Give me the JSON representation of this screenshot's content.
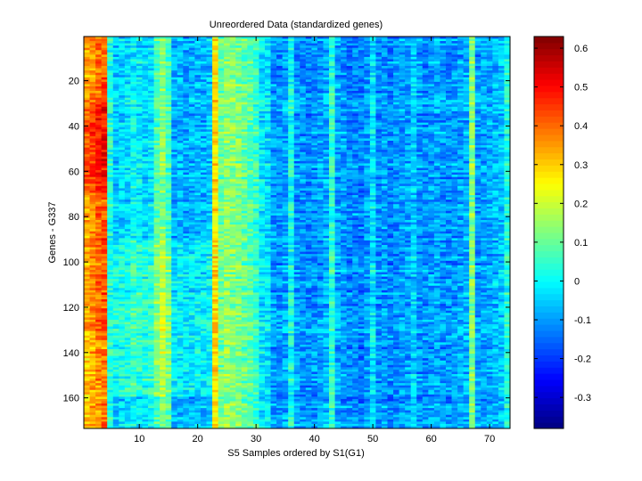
{
  "chart_data": {
    "type": "heatmap",
    "title": "Unreordered Data (standardized genes)",
    "xlabel": "S5 Samples ordered by S1(G1)",
    "ylabel": "Genes - G337",
    "n_columns": 73,
    "n_rows": 173,
    "xlim": [
      0.5,
      73.5
    ],
    "ylim": [
      0.5,
      173.5
    ],
    "x_ticks": [
      10,
      20,
      30,
      40,
      50,
      60,
      70
    ],
    "y_ticks": [
      20,
      40,
      60,
      80,
      100,
      120,
      140,
      160
    ],
    "colorbar": {
      "colormap": "jet",
      "clim": [
        -0.38,
        0.63
      ],
      "ticks": [
        -0.3,
        -0.2,
        -0.1,
        0,
        0.1,
        0.2,
        0.3,
        0.4,
        0.5,
        0.6
      ],
      "tick_labels": [
        "-0.3",
        "-0.2",
        "-0.1",
        "0",
        "0.1",
        "0.2",
        "0.3",
        "0.4",
        "0.5",
        "0.6"
      ]
    },
    "background_value": -0.09,
    "column_offsets": [
      {
        "col": 1,
        "value": 0.34
      },
      {
        "col": 2,
        "value": 0.37
      },
      {
        "col": 3,
        "value": 0.4
      },
      {
        "col": 4,
        "value": 0.42
      },
      {
        "col": 5,
        "value": 0.03
      },
      {
        "col": 6,
        "value": -0.05
      },
      {
        "col": 7,
        "value": -0.04
      },
      {
        "col": 8,
        "value": -0.03
      },
      {
        "col": 9,
        "value": 0.0
      },
      {
        "col": 10,
        "value": -0.02
      },
      {
        "col": 11,
        "value": -0.03
      },
      {
        "col": 12,
        "value": -0.02
      },
      {
        "col": 13,
        "value": 0.07
      },
      {
        "col": 14,
        "value": 0.13
      },
      {
        "col": 15,
        "value": 0.06
      },
      {
        "col": 16,
        "value": -0.08
      },
      {
        "col": 17,
        "value": -0.07
      },
      {
        "col": 18,
        "value": -0.09
      },
      {
        "col": 19,
        "value": -0.08
      },
      {
        "col": 20,
        "value": -0.07
      },
      {
        "col": 21,
        "value": -0.08
      },
      {
        "col": 22,
        "value": -0.06
      },
      {
        "col": 23,
        "value": 0.28
      },
      {
        "col": 24,
        "value": 0.1
      },
      {
        "col": 25,
        "value": 0.14
      },
      {
        "col": 26,
        "value": 0.13
      },
      {
        "col": 27,
        "value": 0.12
      },
      {
        "col": 28,
        "value": 0.1
      },
      {
        "col": 29,
        "value": 0.08
      },
      {
        "col": 30,
        "value": 0.05
      },
      {
        "col": 31,
        "value": -0.02
      },
      {
        "col": 32,
        "value": -0.03
      },
      {
        "col": 33,
        "value": -0.1
      },
      {
        "col": 34,
        "value": -0.11
      },
      {
        "col": 35,
        "value": -0.09
      },
      {
        "col": 36,
        "value": 0.02
      },
      {
        "col": 37,
        "value": -0.1
      },
      {
        "col": 38,
        "value": -0.11
      },
      {
        "col": 39,
        "value": -0.12
      },
      {
        "col": 40,
        "value": -0.11
      },
      {
        "col": 41,
        "value": -0.1
      },
      {
        "col": 42,
        "value": -0.08
      },
      {
        "col": 43,
        "value": 0.04
      },
      {
        "col": 44,
        "value": -0.09
      },
      {
        "col": 45,
        "value": -0.1
      },
      {
        "col": 46,
        "value": -0.12
      },
      {
        "col": 47,
        "value": -0.11
      },
      {
        "col": 48,
        "value": -0.13
      },
      {
        "col": 49,
        "value": -0.1
      },
      {
        "col": 50,
        "value": -0.02
      },
      {
        "col": 51,
        "value": -0.11
      },
      {
        "col": 52,
        "value": -0.1
      },
      {
        "col": 53,
        "value": -0.12
      },
      {
        "col": 54,
        "value": -0.11
      },
      {
        "col": 55,
        "value": -0.1
      },
      {
        "col": 56,
        "value": -0.09
      },
      {
        "col": 57,
        "value": -0.05
      },
      {
        "col": 58,
        "value": -0.1
      },
      {
        "col": 59,
        "value": -0.11
      },
      {
        "col": 60,
        "value": -0.1
      },
      {
        "col": 61,
        "value": -0.09
      },
      {
        "col": 62,
        "value": -0.1
      },
      {
        "col": 63,
        "value": -0.11
      },
      {
        "col": 64,
        "value": -0.1
      },
      {
        "col": 65,
        "value": -0.09
      },
      {
        "col": 66,
        "value": -0.08
      },
      {
        "col": 67,
        "value": 0.13
      },
      {
        "col": 68,
        "value": -0.1
      },
      {
        "col": 69,
        "value": -0.09
      },
      {
        "col": 70,
        "value": -0.08
      },
      {
        "col": 71,
        "value": -0.07
      },
      {
        "col": 72,
        "value": -0.06
      },
      {
        "col": 73,
        "value": 0.02
      }
    ],
    "row_profile_note": "",
    "noise_amplitude": 0.07
  }
}
